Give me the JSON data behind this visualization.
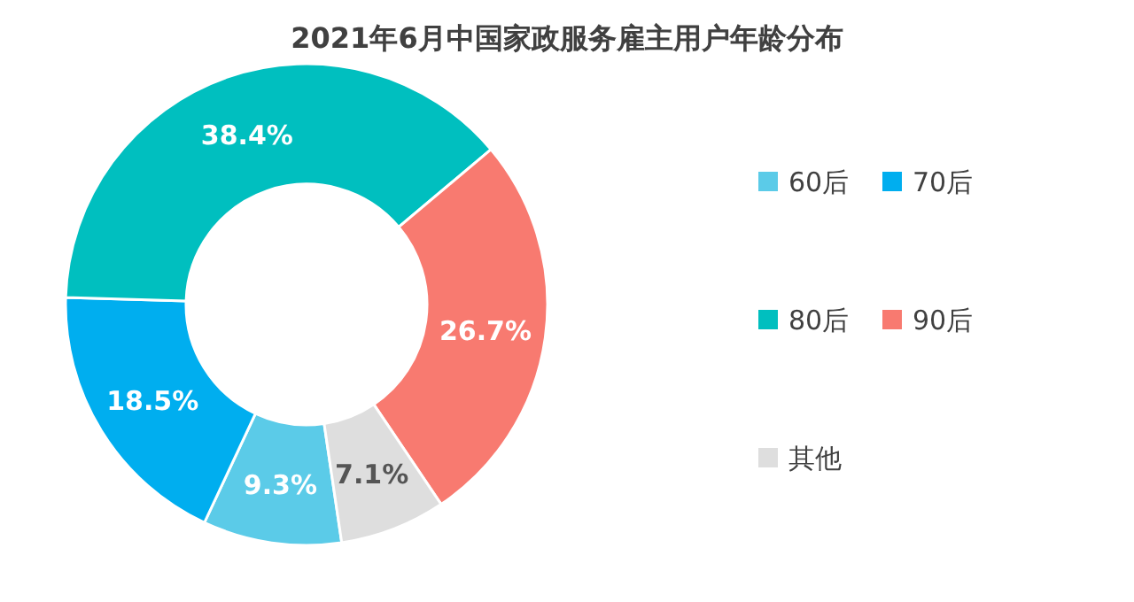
{
  "chart_data": {
    "type": "donut",
    "title": "2021年6月中国家政服务雇主用户年龄分布",
    "categories": [
      "60后",
      "70后",
      "80后",
      "90后",
      "其他"
    ],
    "values": [
      9.3,
      18.5,
      38.4,
      26.7,
      7.1
    ],
    "value_labels": [
      "9.3%",
      "18.5%",
      "38.4%",
      "26.7%",
      "7.1%"
    ],
    "colors": [
      "#5bcbe8",
      "#00aeef",
      "#00bfbf",
      "#f87a70",
      "#dedede"
    ],
    "legend": "right"
  }
}
